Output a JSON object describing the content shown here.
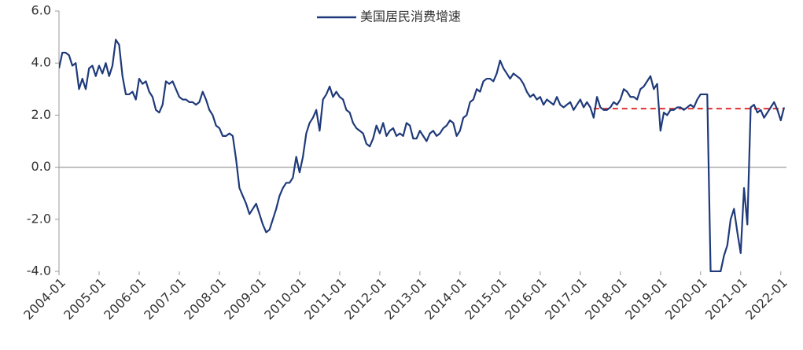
{
  "chart_data": {
    "type": "line",
    "categories": [
      "2004-01",
      null,
      null,
      null,
      null,
      null,
      null,
      null,
      null,
      null,
      null,
      null,
      "2005-01",
      null,
      null,
      null,
      null,
      null,
      null,
      null,
      null,
      null,
      null,
      null,
      "2006-01",
      null,
      null,
      null,
      null,
      null,
      null,
      null,
      null,
      null,
      null,
      null,
      "2007-01",
      null,
      null,
      null,
      null,
      null,
      null,
      null,
      null,
      null,
      null,
      null,
      "2008-01",
      null,
      null,
      null,
      null,
      null,
      null,
      null,
      null,
      null,
      null,
      null,
      "2009-01",
      null,
      null,
      null,
      null,
      null,
      null,
      null,
      null,
      null,
      null,
      null,
      "2010-01",
      null,
      null,
      null,
      null,
      null,
      null,
      null,
      null,
      null,
      null,
      null,
      "2011-01",
      null,
      null,
      null,
      null,
      null,
      null,
      null,
      null,
      null,
      null,
      null,
      "2012-01",
      null,
      null,
      null,
      null,
      null,
      null,
      null,
      null,
      null,
      null,
      null,
      "2013-01",
      null,
      null,
      null,
      null,
      null,
      null,
      null,
      null,
      null,
      null,
      null,
      "2014-01",
      null,
      null,
      null,
      null,
      null,
      null,
      null,
      null,
      null,
      null,
      null,
      "2015-01",
      null,
      null,
      null,
      null,
      null,
      null,
      null,
      null,
      null,
      null,
      null,
      "2016-01",
      null,
      null,
      null,
      null,
      null,
      null,
      null,
      null,
      null,
      null,
      null,
      "2017-01",
      null,
      null,
      null,
      null,
      null,
      null,
      null,
      null,
      null,
      null,
      null,
      "2018-01",
      null,
      null,
      null,
      null,
      null,
      null,
      null,
      null,
      null,
      null,
      null,
      "2019-01",
      null,
      null,
      null,
      null,
      null,
      null,
      null,
      null,
      null,
      null,
      null,
      "2020-01",
      null,
      null,
      null,
      null,
      null,
      null,
      null,
      null,
      null,
      null,
      null,
      "2021-01",
      null,
      null,
      null,
      null,
      null,
      null,
      null,
      null,
      null,
      null,
      null,
      "2022-01",
      null
    ],
    "series": [
      {
        "name": "美国居民消费增速",
        "color": "#1f3a7a",
        "values": [
          3.8,
          4.4,
          4.4,
          4.3,
          3.9,
          4.0,
          3.0,
          3.4,
          3.0,
          3.8,
          3.9,
          3.5,
          3.9,
          3.6,
          4.0,
          3.5,
          3.9,
          4.9,
          4.7,
          3.5,
          2.8,
          2.8,
          2.9,
          2.6,
          3.4,
          3.2,
          3.3,
          2.9,
          2.7,
          2.2,
          2.1,
          2.4,
          3.3,
          3.2,
          3.3,
          3.0,
          2.7,
          2.6,
          2.6,
          2.5,
          2.5,
          2.4,
          2.5,
          2.9,
          2.6,
          2.2,
          2.0,
          1.6,
          1.5,
          1.2,
          1.2,
          1.3,
          1.2,
          0.3,
          -0.8,
          -1.1,
          -1.4,
          -1.8,
          -1.6,
          -1.4,
          -1.8,
          -2.2,
          -2.5,
          -2.4,
          -2.0,
          -1.6,
          -1.1,
          -0.8,
          -0.6,
          -0.6,
          -0.4,
          0.4,
          -0.2,
          0.4,
          1.3,
          1.7,
          1.9,
          2.2,
          1.4,
          2.6,
          2.8,
          3.1,
          2.7,
          2.9,
          2.7,
          2.6,
          2.2,
          2.1,
          1.7,
          1.5,
          1.4,
          1.3,
          0.9,
          0.8,
          1.1,
          1.6,
          1.3,
          1.7,
          1.2,
          1.4,
          1.5,
          1.2,
          1.3,
          1.2,
          1.7,
          1.6,
          1.1,
          1.1,
          1.4,
          1.2,
          1.0,
          1.3,
          1.4,
          1.2,
          1.3,
          1.5,
          1.6,
          1.8,
          1.7,
          1.2,
          1.4,
          1.9,
          2.0,
          2.5,
          2.6,
          3.0,
          2.9,
          3.3,
          3.4,
          3.4,
          3.3,
          3.6,
          4.1,
          3.8,
          3.6,
          3.4,
          3.6,
          3.5,
          3.4,
          3.2,
          2.9,
          2.7,
          2.8,
          2.6,
          2.7,
          2.4,
          2.6,
          2.5,
          2.4,
          2.7,
          2.4,
          2.3,
          2.4,
          2.5,
          2.2,
          2.4,
          2.6,
          2.3,
          2.5,
          2.3,
          1.9,
          2.7,
          2.3,
          2.2,
          2.2,
          2.3,
          2.5,
          2.4,
          2.6,
          3.0,
          2.9,
          2.7,
          2.7,
          2.6,
          3.0,
          3.1,
          3.3,
          3.5,
          3.0,
          3.2,
          1.4,
          2.1,
          2.0,
          2.2,
          2.2,
          2.3,
          2.3,
          2.2,
          2.3,
          2.4,
          2.3,
          2.6,
          2.8,
          2.8,
          2.8,
          -4.0,
          -4.0,
          -4.0,
          -4.0,
          -3.4,
          -3.0,
          -2.0,
          -1.6,
          -2.5,
          -3.3,
          -0.8,
          -2.2,
          2.3,
          2.4,
          2.1,
          2.2,
          1.9,
          2.1,
          2.3,
          2.5,
          2.2,
          1.8,
          2.3
        ]
      }
    ],
    "ylim": [
      -4,
      6
    ],
    "yticks": [
      {
        "value": -4,
        "label": "-4.0"
      },
      {
        "value": -2,
        "label": "-2.0"
      },
      {
        "value": 0,
        "label": "0.0"
      },
      {
        "value": 2,
        "label": "2.0"
      },
      {
        "value": 4,
        "label": "4.0"
      },
      {
        "value": 6,
        "label": "6.0"
      }
    ],
    "reference_line": {
      "value": 2.25,
      "from": "2017-05",
      "color": "#e03030",
      "dashed": true
    },
    "zero_line": true,
    "legend": "top"
  }
}
